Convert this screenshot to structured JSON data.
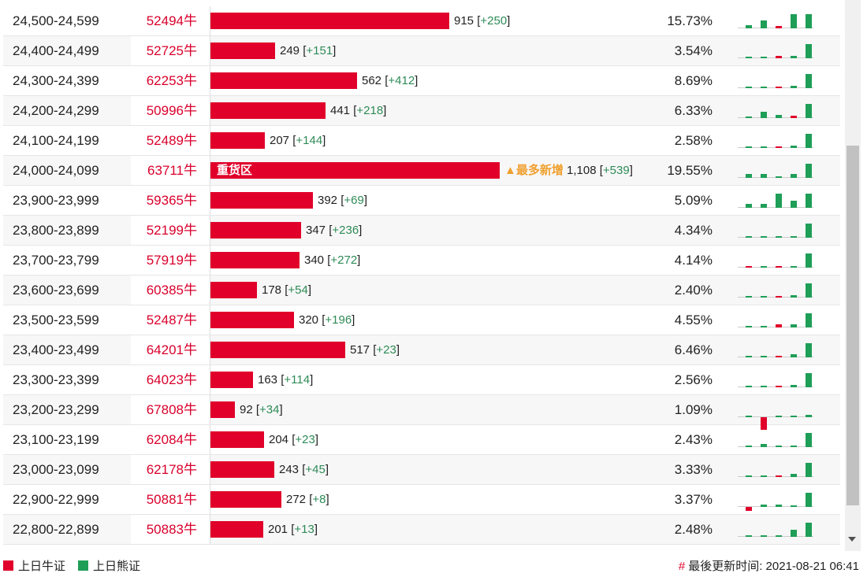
{
  "rows": [
    {
      "range": "24,500-24,599",
      "code": "52494牛",
      "count": "915",
      "chg": "+250",
      "pct": "15.73%",
      "ratio": 0.2036,
      "spark": [
        {
          "t": "g",
          "v": 4
        },
        {
          "t": "g",
          "v": 10
        },
        {
          "t": "r",
          "v": 3
        },
        {
          "t": "g",
          "v": 18
        },
        {
          "t": "g",
          "v": 18
        }
      ]
    },
    {
      "range": "24,400-24,499",
      "code": "52725牛",
      "count": "249",
      "chg": "+151",
      "pct": "3.54%",
      "ratio": 0.0554,
      "spark": [
        {
          "t": "g",
          "v": 1
        },
        {
          "t": "g",
          "v": 1
        },
        {
          "t": "r",
          "v": 3
        },
        {
          "t": "g",
          "v": 3
        },
        {
          "t": "g",
          "v": 18
        }
      ]
    },
    {
      "range": "24,300-24,399",
      "code": "62253牛",
      "count": "562",
      "chg": "+412",
      "pct": "8.69%",
      "ratio": 0.125,
      "spark": [
        {
          "t": "g",
          "v": 1
        },
        {
          "t": "g",
          "v": 1
        },
        {
          "t": "r",
          "v": 1
        },
        {
          "t": "g",
          "v": 3
        },
        {
          "t": "g",
          "v": 18
        }
      ]
    },
    {
      "range": "24,200-24,299",
      "code": "50996牛",
      "count": "441",
      "chg": "+218",
      "pct": "6.33%",
      "ratio": 0.0981,
      "spark": [
        {
          "t": "g",
          "v": 1
        },
        {
          "t": "g",
          "v": 8
        },
        {
          "t": "g",
          "v": 4
        },
        {
          "t": "r",
          "v": 3
        },
        {
          "t": "g",
          "v": 18
        }
      ]
    },
    {
      "range": "24,100-24,199",
      "code": "52489牛",
      "count": "207",
      "chg": "+144",
      "pct": "2.58%",
      "ratio": 0.0461,
      "spark": [
        {
          "t": "g",
          "v": 0
        },
        {
          "t": "g",
          "v": 1
        },
        {
          "t": "r",
          "v": 1
        },
        {
          "t": "g",
          "v": 3
        },
        {
          "t": "g",
          "v": 18
        }
      ]
    },
    {
      "range": "24,000-24,099",
      "code": "63711牛",
      "count": "1,108",
      "chg": "+539",
      "pct": "19.55%",
      "ratio": 0.2466,
      "heavy": "重货区",
      "most": "▲最多新增",
      "spark": [
        {
          "t": "g",
          "v": 5
        },
        {
          "t": "g",
          "v": 5
        },
        {
          "t": "g",
          "v": 1
        },
        {
          "t": "g",
          "v": 5
        },
        {
          "t": "g",
          "v": 18
        }
      ]
    },
    {
      "range": "23,900-23,999",
      "code": "59365牛",
      "count": "392",
      "chg": "+69",
      "pct": "5.09%",
      "ratio": 0.0872,
      "spark": [
        {
          "t": "g",
          "v": 5
        },
        {
          "t": "g",
          "v": 5
        },
        {
          "t": "g",
          "v": 18
        },
        {
          "t": "g",
          "v": 9
        },
        {
          "t": "g",
          "v": 18
        }
      ]
    },
    {
      "range": "23,800-23,899",
      "code": "52199牛",
      "count": "347",
      "chg": "+236",
      "pct": "4.34%",
      "ratio": 0.0772,
      "spark": [
        {
          "t": "g",
          "v": 1
        },
        {
          "t": "g",
          "v": 0
        },
        {
          "t": "g",
          "v": 1
        },
        {
          "t": "g",
          "v": 1
        },
        {
          "t": "g",
          "v": 18
        }
      ]
    },
    {
      "range": "23,700-23,799",
      "code": "57919牛",
      "count": "340",
      "chg": "+272",
      "pct": "4.14%",
      "ratio": 0.0757,
      "spark": [
        {
          "t": "r",
          "v": 1
        },
        {
          "t": "g",
          "v": 1
        },
        {
          "t": "r",
          "v": 1
        },
        {
          "t": "g",
          "v": 1
        },
        {
          "t": "g",
          "v": 18
        }
      ]
    },
    {
      "range": "23,600-23,699",
      "code": "60385牛",
      "count": "178",
      "chg": "+54",
      "pct": "2.40%",
      "ratio": 0.0396,
      "spark": [
        {
          "t": "g",
          "v": 1
        },
        {
          "t": "g",
          "v": 1
        },
        {
          "t": "r",
          "v": 1
        },
        {
          "t": "g",
          "v": 3
        },
        {
          "t": "g",
          "v": 18
        }
      ]
    },
    {
      "range": "23,500-23,599",
      "code": "52487牛",
      "count": "320",
      "chg": "+196",
      "pct": "4.55%",
      "ratio": 0.0712,
      "spark": [
        {
          "t": "g",
          "v": 1
        },
        {
          "t": "g",
          "v": 1
        },
        {
          "t": "r",
          "v": 4
        },
        {
          "t": "g",
          "v": 4
        },
        {
          "t": "g",
          "v": 18
        }
      ]
    },
    {
      "range": "23,400-23,499",
      "code": "64201牛",
      "count": "517",
      "chg": "+23",
      "pct": "6.46%",
      "ratio": 0.115,
      "spark": [
        {
          "t": "g",
          "v": 0
        },
        {
          "t": "g",
          "v": 1
        },
        {
          "t": "r",
          "v": 2
        },
        {
          "t": "g",
          "v": 4
        },
        {
          "t": "g",
          "v": 18
        }
      ]
    },
    {
      "range": "23,300-23,399",
      "code": "64023牛",
      "count": "163",
      "chg": "+114",
      "pct": "2.56%",
      "ratio": 0.0363,
      "spark": [
        {
          "t": "g",
          "v": 1
        },
        {
          "t": "g",
          "v": 1
        },
        {
          "t": "r",
          "v": 1
        },
        {
          "t": "g",
          "v": 3
        },
        {
          "t": "g",
          "v": 18
        }
      ]
    },
    {
      "range": "23,200-23,299",
      "code": "67808牛",
      "count": "92",
      "chg": "+34",
      "pct": "1.09%",
      "ratio": 0.0205,
      "spark": [
        {
          "t": "g",
          "v": 0
        },
        {
          "t": "r",
          "v": -16
        },
        {
          "t": "g",
          "v": 1
        },
        {
          "t": "g",
          "v": 1
        },
        {
          "t": "g",
          "v": 3
        }
      ]
    },
    {
      "range": "23,100-23,199",
      "code": "62084牛",
      "count": "204",
      "chg": "+23",
      "pct": "2.43%",
      "ratio": 0.0454,
      "spark": [
        {
          "t": "g",
          "v": 0
        },
        {
          "t": "g",
          "v": 4
        },
        {
          "t": "g",
          "v": 0
        },
        {
          "t": "g",
          "v": 1
        },
        {
          "t": "g",
          "v": 18
        }
      ]
    },
    {
      "range": "23,000-23,099",
      "code": "62178牛",
      "count": "243",
      "chg": "+45",
      "pct": "3.33%",
      "ratio": 0.0541,
      "spark": [
        {
          "t": "g",
          "v": 1
        },
        {
          "t": "g",
          "v": 1
        },
        {
          "t": "r",
          "v": 2
        },
        {
          "t": "g",
          "v": 4
        },
        {
          "t": "g",
          "v": 18
        }
      ]
    },
    {
      "range": "22,900-22,999",
      "code": "50881牛",
      "count": "272",
      "chg": "+8",
      "pct": "3.37%",
      "ratio": 0.0605,
      "spark": [
        {
          "t": "r",
          "v": -5
        },
        {
          "t": "g",
          "v": 3
        },
        {
          "t": "g",
          "v": 3
        },
        {
          "t": "g",
          "v": 0
        },
        {
          "t": "g",
          "v": 18
        }
      ]
    },
    {
      "range": "22,800-22,899",
      "code": "50883牛",
      "count": "201",
      "chg": "+13",
      "pct": "2.48%",
      "ratio": 0.0447,
      "spark": [
        {
          "t": "g",
          "v": 1
        },
        {
          "t": "g",
          "v": 1
        },
        {
          "t": "g",
          "v": 0
        },
        {
          "t": "g",
          "v": 9
        },
        {
          "t": "g",
          "v": 18
        }
      ]
    }
  ],
  "legend": {
    "bull": "上日牛证",
    "bear": "上日熊证",
    "bull_color": "#e0002a",
    "bear_color": "#1e9e57"
  },
  "footer": {
    "hash": "#",
    "updated": "最後更新时间: 2021-08-21 06:41"
  }
}
